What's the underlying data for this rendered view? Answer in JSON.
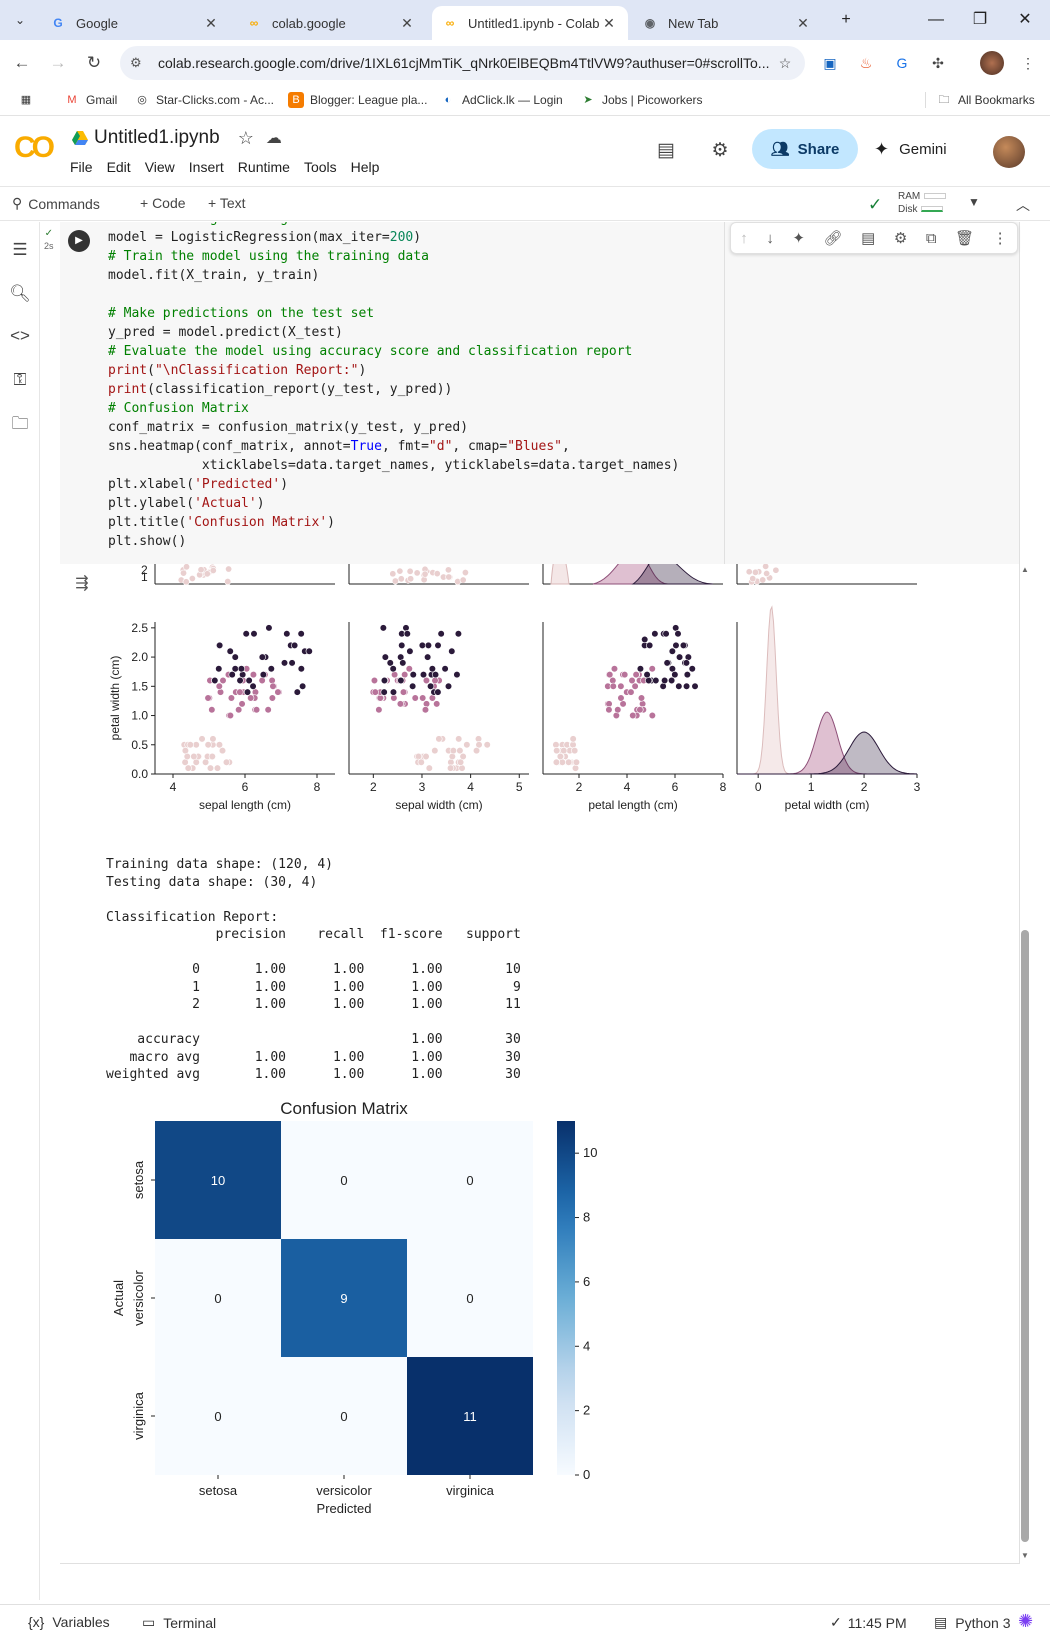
{
  "browser": {
    "tabs": [
      {
        "title": "Google",
        "favicon": "google-icon",
        "active": false
      },
      {
        "title": "colab.google",
        "favicon": "colab-icon",
        "active": false
      },
      {
        "title": "Untitled1.ipynb - Colab",
        "favicon": "colab-icon",
        "active": true
      },
      {
        "title": "New Tab",
        "favicon": "chrome-icon",
        "active": false
      }
    ],
    "url": "colab.research.google.com/drive/1IXL61cjMmTiK_qNrk0ElBEQBm4TtlVW9?authuser=0#scrollTo...",
    "bookmarks": [
      {
        "label": "Gmail",
        "icon": "gmail-icon"
      },
      {
        "label": "Star-Clicks.com - Ac...",
        "icon": "starclicks-icon"
      },
      {
        "label": "Blogger: League pla...",
        "icon": "blogger-icon"
      },
      {
        "label": "AdClick.lk — Login",
        "icon": "adclick-icon"
      },
      {
        "label": "Jobs | Picoworkers",
        "icon": "picoworkers-icon"
      }
    ],
    "all_bookmarks": "All Bookmarks"
  },
  "colab": {
    "notebook_title": "Untitled1.ipynb",
    "menu": [
      "File",
      "Edit",
      "View",
      "Insert",
      "Runtime",
      "Tools",
      "Help"
    ],
    "share_label": "Share",
    "gemini_label": "Gemini",
    "commands_label": "Commands",
    "add_code_label": "+ Code",
    "add_text_label": "+ Text",
    "ram_label": "RAM",
    "disk_label": "Disk",
    "cell_time": "2s"
  },
  "code_lines": [
    [
      {
        "c": "cm",
        "t": "# Create a Logistic Regression model"
      }
    ],
    [
      {
        "c": "",
        "t": "model = LogisticRegression(max_iter="
      },
      {
        "c": "nu",
        "t": "200"
      },
      {
        "c": "",
        "t": ")"
      }
    ],
    [
      {
        "c": "cm",
        "t": "# Train the model using the training data"
      }
    ],
    [
      {
        "c": "",
        "t": "model.fit(X_train, y_train)"
      }
    ],
    [
      {
        "c": "",
        "t": ""
      }
    ],
    [
      {
        "c": "cm",
        "t": "# Make predictions on the test set"
      }
    ],
    [
      {
        "c": "",
        "t": "y_pred = model.predict(X_test)"
      }
    ],
    [
      {
        "c": "cm",
        "t": "# Evaluate the model using accuracy score and classification report"
      }
    ],
    [
      {
        "c": "st",
        "t": "print"
      },
      {
        "c": "",
        "t": "("
      },
      {
        "c": "st",
        "t": "\"\\nClassification Report:\""
      },
      {
        "c": "",
        "t": ")"
      }
    ],
    [
      {
        "c": "st",
        "t": "print"
      },
      {
        "c": "",
        "t": "(classification_report(y_test, y_pred))"
      }
    ],
    [
      {
        "c": "cm",
        "t": "# Confusion Matrix"
      }
    ],
    [
      {
        "c": "",
        "t": "conf_matrix = confusion_matrix(y_test, y_pred)"
      }
    ],
    [
      {
        "c": "",
        "t": "sns.heatmap(conf_matrix, annot="
      },
      {
        "c": "kw",
        "t": "True"
      },
      {
        "c": "",
        "t": ", fmt="
      },
      {
        "c": "st",
        "t": "\"d\""
      },
      {
        "c": "",
        "t": ", cmap="
      },
      {
        "c": "st",
        "t": "\"Blues\""
      },
      {
        "c": "",
        "t": ","
      }
    ],
    [
      {
        "c": "",
        "t": "            xticklabels=data.target_names, yticklabels=data.target_names)"
      }
    ],
    [
      {
        "c": "",
        "t": "plt.xlabel("
      },
      {
        "c": "st",
        "t": "'Predicted'"
      },
      {
        "c": "",
        "t": ")"
      }
    ],
    [
      {
        "c": "",
        "t": "plt.ylabel("
      },
      {
        "c": "st",
        "t": "'Actual'"
      },
      {
        "c": "",
        "t": ")"
      }
    ],
    [
      {
        "c": "",
        "t": "plt.title("
      },
      {
        "c": "st",
        "t": "'Confusion Matrix'"
      },
      {
        "c": "",
        "t": ")"
      }
    ],
    [
      {
        "c": "",
        "t": "plt.show()"
      }
    ]
  ],
  "text_output": "Training data shape: (120, 4)\nTesting data shape: (30, 4)\n\nClassification Report:\n              precision    recall  f1-score   support\n\n           0       1.00      1.00      1.00        10\n           1       1.00      1.00      1.00         9\n           2       1.00      1.00      1.00        11\n\n    accuracy                           1.00        30\n   macro avg       1.00      1.00      1.00        30\nweighted avg       1.00      1.00      1.00        30",
  "statusbar": {
    "variables": "Variables",
    "terminal": "Terminal",
    "time": "11:45 PM",
    "runtime": "Python 3"
  },
  "chart_data": [
    {
      "type": "scatter",
      "ylabel": "petal width (cm)",
      "xlabels": [
        "sepal length (cm)",
        "sepal width (cm)",
        "petal length (cm)",
        "petal width (cm)"
      ],
      "yticks": [
        "0.0",
        "0.5",
        "1.0",
        "1.5",
        "2.0",
        "2.5"
      ],
      "top_row_yticks": [
        "1",
        "2"
      ],
      "xticks": [
        [
          "4",
          "6",
          "8"
        ],
        [
          "2",
          "3",
          "4",
          "5"
        ],
        [
          "2",
          "4",
          "6",
          "8"
        ],
        [
          "0",
          "1",
          "2",
          "3"
        ]
      ],
      "xlims": [
        [
          3.5,
          8.5
        ],
        [
          1.5,
          5.2
        ],
        [
          0.5,
          8.0
        ],
        [
          -0.4,
          3.0
        ]
      ],
      "ylim": [
        0.0,
        2.6
      ],
      "palette": [
        "#e9cfcf",
        "#b8739a",
        "#2b1a3a"
      ],
      "species_clusters": [
        {
          "species": 0,
          "sepal_length": [
            4.3,
            5.8
          ],
          "sepal_width": [
            2.9,
            4.4
          ],
          "petal_length": [
            1.0,
            1.9
          ],
          "petal_width": [
            0.1,
            0.6
          ]
        },
        {
          "species": 1,
          "sepal_length": [
            4.9,
            7.0
          ],
          "sepal_width": [
            2.0,
            3.4
          ],
          "petal_length": [
            3.0,
            5.1
          ],
          "petal_width": [
            1.0,
            1.8
          ]
        },
        {
          "species": 2,
          "sepal_length": [
            4.9,
            7.9
          ],
          "sepal_width": [
            2.2,
            3.8
          ],
          "petal_length": [
            4.5,
            6.9
          ],
          "petal_width": [
            1.4,
            2.5
          ]
        }
      ],
      "kde_peaks": [
        0.25,
        1.3,
        2.0
      ]
    },
    {
      "type": "heatmap",
      "title": "Confusion Matrix",
      "xlabel": "Predicted",
      "ylabel": "Actual",
      "categories": [
        "setosa",
        "versicolor",
        "virginica"
      ],
      "values": [
        [
          10,
          0,
          0
        ],
        [
          0,
          9,
          0
        ],
        [
          0,
          0,
          11
        ]
      ],
      "colorbar_ticks": [
        0,
        2,
        4,
        6,
        8,
        10
      ],
      "colorbar_range": [
        0,
        11
      ],
      "cmap": "Blues"
    }
  ]
}
